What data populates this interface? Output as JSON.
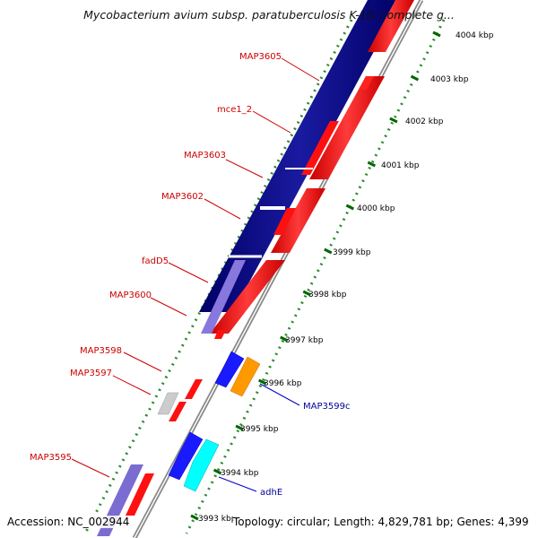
{
  "title": "Mycobacterium avium subsp. paratuberculosis K-10, complete g...",
  "footer": {
    "accession": "Accession: NC_002944",
    "topology": "Topology: circular; Length: 4,829,781 bp; Genes: 4,399"
  },
  "colors": {
    "gene_label": "#cc0000",
    "blue_label": "#000099",
    "navy_band": "#000080",
    "red_feature": "#ff0000",
    "tick_green": "#006600",
    "backbone": "#999999"
  },
  "kbp_labels": [
    "4004 kbp",
    "4003 kbp",
    "4002 kbp",
    "4001 kbp",
    "4000 kbp",
    "3999 kbp",
    "3998 kbp",
    "3997 kbp",
    "3996 kbp",
    "3995 kbp",
    "3994 kbp",
    "3993 kbp"
  ],
  "red_labels": [
    "MAP3605",
    "mce1_2",
    "MAP3603",
    "MAP3602",
    "fadD5",
    "MAP3600",
    "MAP3598",
    "MAP3597",
    "MAP3595"
  ],
  "blue_labels": [
    "MAP3599c",
    "adhE"
  ]
}
